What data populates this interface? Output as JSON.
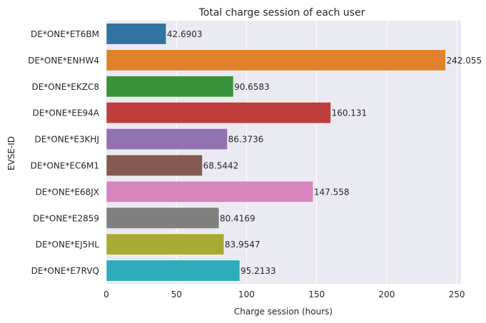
{
  "chart_data": {
    "type": "bar",
    "orientation": "horizontal",
    "title": "Total charge session of each user",
    "xlabel": "Charge session (hours)",
    "ylabel": "EVSE-ID",
    "xlim": [
      0,
      253
    ],
    "xticks": [
      0,
      50,
      100,
      150,
      200,
      250
    ],
    "grid": true,
    "categories": [
      "DE*ONE*ET6BM",
      "DE*ONE*ENHW4",
      "DE*ONE*EKZC8",
      "DE*ONE*EE94A",
      "DE*ONE*E3KHJ",
      "DE*ONE*EC6M1",
      "DE*ONE*E68JX",
      "DE*ONE*E2859",
      "DE*ONE*EJ5HL",
      "DE*ONE*E7RVQ"
    ],
    "values": [
      42.6903,
      242.055,
      90.6583,
      160.131,
      86.3736,
      68.5442,
      147.558,
      80.4169,
      83.9547,
      95.2133
    ],
    "data_labels": [
      "42.6903",
      "242.055",
      "90.6583",
      "160.131",
      "86.3736",
      "68.5442",
      "147.558",
      "80.4169",
      "83.9547",
      "95.2133"
    ],
    "colors": [
      "#3274a1",
      "#e1812c",
      "#3a923a",
      "#c03d3e",
      "#9372b2",
      "#845b53",
      "#d684bd",
      "#7f7f7f",
      "#a9aa35",
      "#2eabb8"
    ],
    "background_color": "#eaeaf2",
    "grid_color": "#ffffff"
  }
}
